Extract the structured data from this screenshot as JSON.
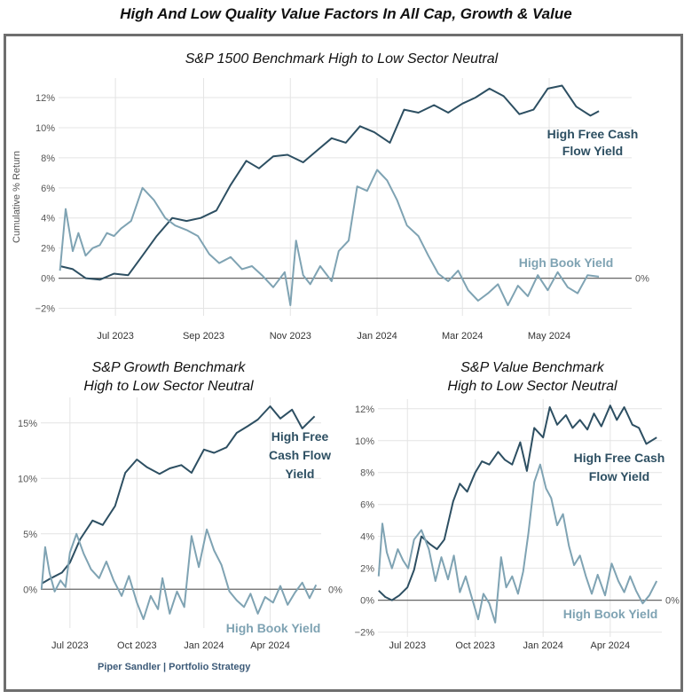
{
  "title": "High And Low Quality Value Factors In All Cap, Growth & Value",
  "footer": "Piper Sandler  |  Portfolio Strategy",
  "colors": {
    "fcf": "#2d4f62",
    "book": "#7fa3b3",
    "zero_line": "#666666",
    "grid": "#e4e4e4"
  },
  "chart_data": [
    {
      "type": "line",
      "title": "S&P 1500 Benchmark High to Low Sector Neutral",
      "ylabel": "Cumulative % Return",
      "ylim": [
        -2.5,
        13.3
      ],
      "yticks": [
        -2,
        0,
        2,
        4,
        6,
        8,
        10,
        12
      ],
      "ytick_labels": [
        "−2%",
        "0%",
        "2%",
        "4%",
        "6%",
        "8%",
        "10%",
        "12%"
      ],
      "xlim": [
        "2023-05-22",
        "2024-06-28"
      ],
      "xticks": [
        "2023-07-01",
        "2023-09-01",
        "2023-11-01",
        "2024-01-01",
        "2024-03-01",
        "2024-05-01"
      ],
      "xtick_labels": [
        "Jul 2023",
        "Sep 2023",
        "Nov 2023",
        "Jan 2024",
        "Mar 2024",
        "May 2024"
      ],
      "zero_label": "0%",
      "series": [
        {
          "name": "High Free Cash Flow Yield",
          "x": [
            "2023-05-23",
            "2023-06-01",
            "2023-06-10",
            "2023-06-20",
            "2023-06-30",
            "2023-07-10",
            "2023-07-20",
            "2023-07-30",
            "2023-08-10",
            "2023-08-20",
            "2023-08-30",
            "2023-09-10",
            "2023-09-20",
            "2023-10-01",
            "2023-10-10",
            "2023-10-20",
            "2023-10-30",
            "2023-11-10",
            "2023-11-20",
            "2023-11-30",
            "2023-12-10",
            "2023-12-20",
            "2023-12-30",
            "2024-01-10",
            "2024-01-20",
            "2024-01-30",
            "2024-02-10",
            "2024-02-20",
            "2024-03-01",
            "2024-03-10",
            "2024-03-20",
            "2024-03-30",
            "2024-04-10",
            "2024-04-20",
            "2024-04-30",
            "2024-05-10",
            "2024-05-20",
            "2024-05-30",
            "2024-06-05"
          ],
          "values": [
            0.8,
            0.6,
            0.0,
            -0.1,
            0.3,
            0.2,
            1.5,
            2.8,
            4.0,
            3.8,
            4.0,
            4.5,
            6.2,
            7.8,
            7.3,
            8.1,
            8.2,
            7.7,
            8.5,
            9.3,
            9.0,
            10.1,
            9.7,
            9.0,
            11.2,
            11.0,
            11.5,
            11.0,
            11.6,
            12.0,
            12.6,
            12.1,
            10.9,
            11.2,
            12.6,
            12.8,
            11.4,
            10.8,
            11.1
          ]
        },
        {
          "name": "High Book Yield",
          "x": [
            "2023-05-23",
            "2023-05-27",
            "2023-06-01",
            "2023-06-05",
            "2023-06-10",
            "2023-06-15",
            "2023-06-20",
            "2023-06-25",
            "2023-06-30",
            "2023-07-05",
            "2023-07-12",
            "2023-07-20",
            "2023-07-28",
            "2023-08-05",
            "2023-08-12",
            "2023-08-20",
            "2023-08-28",
            "2023-09-05",
            "2023-09-12",
            "2023-09-20",
            "2023-09-28",
            "2023-10-05",
            "2023-10-12",
            "2023-10-20",
            "2023-10-28",
            "2023-11-01",
            "2023-11-05",
            "2023-11-10",
            "2023-11-15",
            "2023-11-22",
            "2023-11-30",
            "2023-12-05",
            "2023-12-12",
            "2023-12-18",
            "2023-12-25",
            "2024-01-01",
            "2024-01-08",
            "2024-01-15",
            "2024-01-22",
            "2024-01-30",
            "2024-02-06",
            "2024-02-13",
            "2024-02-20",
            "2024-02-27",
            "2024-03-05",
            "2024-03-12",
            "2024-03-19",
            "2024-03-26",
            "2024-04-02",
            "2024-04-09",
            "2024-04-16",
            "2024-04-23",
            "2024-04-30",
            "2024-05-07",
            "2024-05-14",
            "2024-05-21",
            "2024-05-28",
            "2024-06-05"
          ],
          "values": [
            0.5,
            4.6,
            1.8,
            3.0,
            1.5,
            2.0,
            2.2,
            3.0,
            2.8,
            3.3,
            3.8,
            6.0,
            5.2,
            4.0,
            3.5,
            3.2,
            2.8,
            1.6,
            1.0,
            1.4,
            0.6,
            0.8,
            0.2,
            -0.6,
            0.4,
            -1.8,
            2.5,
            0.2,
            -0.4,
            0.8,
            -0.2,
            1.8,
            2.5,
            6.1,
            5.8,
            7.2,
            6.5,
            5.2,
            3.5,
            2.8,
            1.5,
            0.3,
            -0.2,
            0.5,
            -0.8,
            -1.5,
            -1.0,
            -0.4,
            -1.8,
            -0.5,
            -1.2,
            0.2,
            -0.8,
            0.4,
            -0.6,
            -1.0,
            0.2,
            0.1
          ]
        }
      ]
    },
    {
      "type": "line",
      "title": "S&P Growth Benchmark High to Low Sector Neutral",
      "ylim": [
        -3.5,
        17.3
      ],
      "yticks": [
        0,
        5,
        10,
        15
      ],
      "ytick_labels": [
        "0%",
        "5%",
        "10%",
        "15%"
      ],
      "xlim": [
        "2023-05-22",
        "2024-06-10"
      ],
      "xticks": [
        "2023-07-01",
        "2023-10-01",
        "2024-01-01",
        "2024-04-01"
      ],
      "xtick_labels": [
        "Jul 2023",
        "Oct 2023",
        "Jan 2024",
        "Apr 2024"
      ],
      "zero_label": "0%",
      "series": [
        {
          "name": "High Free Cash Flow Yield",
          "x": [
            "2023-05-23",
            "2023-06-05",
            "2023-06-20",
            "2023-07-01",
            "2023-07-15",
            "2023-08-01",
            "2023-08-15",
            "2023-09-01",
            "2023-09-15",
            "2023-10-01",
            "2023-10-15",
            "2023-11-01",
            "2023-11-15",
            "2023-12-01",
            "2023-12-15",
            "2024-01-01",
            "2024-01-15",
            "2024-02-01",
            "2024-02-15",
            "2024-03-01",
            "2024-03-15",
            "2024-04-01",
            "2024-04-15",
            "2024-05-01",
            "2024-05-15",
            "2024-06-01"
          ],
          "values": [
            0.5,
            1.0,
            1.5,
            2.4,
            4.5,
            6.2,
            5.8,
            7.5,
            10.5,
            11.7,
            11.0,
            10.4,
            10.9,
            11.2,
            10.5,
            12.6,
            12.3,
            12.8,
            14.1,
            14.7,
            15.3,
            16.5,
            15.4,
            16.2,
            14.5,
            15.6
          ]
        },
        {
          "name": "High Book Yield",
          "x": [
            "2023-05-23",
            "2023-05-28",
            "2023-06-03",
            "2023-06-10",
            "2023-06-18",
            "2023-06-25",
            "2023-07-01",
            "2023-07-10",
            "2023-07-20",
            "2023-07-30",
            "2023-08-10",
            "2023-08-20",
            "2023-08-30",
            "2023-09-10",
            "2023-09-20",
            "2023-10-01",
            "2023-10-10",
            "2023-10-20",
            "2023-10-30",
            "2023-11-05",
            "2023-11-15",
            "2023-11-25",
            "2023-12-05",
            "2023-12-15",
            "2023-12-25",
            "2024-01-05",
            "2024-01-15",
            "2024-01-25",
            "2024-02-05",
            "2024-02-15",
            "2024-02-25",
            "2024-03-05",
            "2024-03-15",
            "2024-03-25",
            "2024-04-05",
            "2024-04-15",
            "2024-04-25",
            "2024-05-05",
            "2024-05-15",
            "2024-05-25",
            "2024-06-03"
          ],
          "values": [
            0.0,
            3.8,
            1.5,
            -0.2,
            0.8,
            0.2,
            3.3,
            5.0,
            3.2,
            1.8,
            1.0,
            2.5,
            0.8,
            -0.6,
            1.2,
            -1.2,
            -2.7,
            -0.6,
            -1.8,
            1.0,
            -2.2,
            -0.2,
            -1.6,
            4.8,
            2.0,
            5.4,
            3.5,
            2.2,
            -0.2,
            -1.0,
            -1.6,
            -0.4,
            -2.2,
            -0.7,
            -1.2,
            0.3,
            -1.4,
            -0.3,
            0.6,
            -0.8,
            0.4
          ]
        }
      ]
    },
    {
      "type": "line",
      "title": "S&P Value Benchmark High to Low Sector Neutral",
      "ylim": [
        -2.3,
        12.6
      ],
      "yticks": [
        -2,
        0,
        2,
        4,
        6,
        8,
        10,
        12
      ],
      "ytick_labels": [
        "−2%",
        "0%",
        "2%",
        "4%",
        "6%",
        "8%",
        "10%",
        "12%"
      ],
      "xlim": [
        "2023-05-22",
        "2024-06-10"
      ],
      "xticks": [
        "2023-07-01",
        "2023-10-01",
        "2024-01-01",
        "2024-04-01"
      ],
      "xtick_labels": [
        "Jul 2023",
        "Oct 2023",
        "Jan 2024",
        "Apr 2024"
      ],
      "zero_label": "0%",
      "series": [
        {
          "name": "High Free Cash Flow Yield",
          "x": [
            "2023-05-23",
            "2023-06-01",
            "2023-06-10",
            "2023-06-20",
            "2023-07-01",
            "2023-07-10",
            "2023-07-20",
            "2023-08-01",
            "2023-08-10",
            "2023-08-20",
            "2023-09-01",
            "2023-09-10",
            "2023-09-20",
            "2023-10-01",
            "2023-10-10",
            "2023-10-20",
            "2023-11-01",
            "2023-11-10",
            "2023-11-20",
            "2023-12-01",
            "2023-12-10",
            "2023-12-20",
            "2024-01-01",
            "2024-01-10",
            "2024-01-20",
            "2024-02-01",
            "2024-02-10",
            "2024-02-20",
            "2024-03-01",
            "2024-03-10",
            "2024-03-20",
            "2024-04-01",
            "2024-04-10",
            "2024-04-20",
            "2024-05-01",
            "2024-05-10",
            "2024-05-20",
            "2024-06-03"
          ],
          "values": [
            0.6,
            0.2,
            0.0,
            0.3,
            0.8,
            1.9,
            4.0,
            3.5,
            3.2,
            3.8,
            6.2,
            7.3,
            6.8,
            8.0,
            8.7,
            8.5,
            9.3,
            8.8,
            8.5,
            9.9,
            8.1,
            10.8,
            10.2,
            12.1,
            11.0,
            11.6,
            10.8,
            11.3,
            10.7,
            11.7,
            10.9,
            12.2,
            11.3,
            12.1,
            11.0,
            10.8,
            9.8,
            10.2
          ]
        },
        {
          "name": "High Book Yield",
          "x": [
            "2023-05-23",
            "2023-05-28",
            "2023-06-03",
            "2023-06-10",
            "2023-06-18",
            "2023-06-25",
            "2023-07-02",
            "2023-07-10",
            "2023-07-20",
            "2023-07-30",
            "2023-08-08",
            "2023-08-16",
            "2023-08-25",
            "2023-09-02",
            "2023-09-10",
            "2023-09-18",
            "2023-09-26",
            "2023-10-05",
            "2023-10-12",
            "2023-10-20",
            "2023-10-28",
            "2023-11-05",
            "2023-11-12",
            "2023-11-20",
            "2023-11-28",
            "2023-12-05",
            "2023-12-12",
            "2023-12-20",
            "2023-12-28",
            "2024-01-05",
            "2024-01-12",
            "2024-01-20",
            "2024-01-28",
            "2024-02-05",
            "2024-02-12",
            "2024-02-20",
            "2024-02-28",
            "2024-03-07",
            "2024-03-15",
            "2024-03-25",
            "2024-04-03",
            "2024-04-12",
            "2024-04-20",
            "2024-04-28",
            "2024-05-06",
            "2024-05-15",
            "2024-05-24",
            "2024-06-03"
          ],
          "values": [
            1.5,
            4.8,
            3.0,
            2.0,
            3.2,
            2.5,
            2.0,
            3.8,
            4.4,
            3.2,
            1.2,
            2.7,
            1.3,
            2.8,
            0.5,
            1.5,
            0.2,
            -1.2,
            0.4,
            -0.2,
            -1.4,
            2.7,
            0.8,
            1.5,
            0.4,
            1.8,
            4.2,
            7.4,
            8.5,
            7.0,
            6.4,
            4.7,
            5.4,
            3.4,
            2.2,
            2.8,
            1.5,
            0.4,
            1.6,
            0.3,
            2.3,
            1.2,
            0.5,
            1.5,
            0.6,
            -0.2,
            0.3,
            1.2
          ]
        }
      ]
    }
  ],
  "labels": {
    "top_fcf": [
      "High Free Cash",
      "Flow Yield"
    ],
    "top_book": "High Book Yield",
    "growth_fcf": [
      "High Free",
      "Cash Flow",
      "Yield"
    ],
    "growth_book": "High Book Yield",
    "value_fcf": [
      "High Free Cash",
      "Flow Yield"
    ],
    "value_book": "High Book Yield"
  },
  "panel_titles": {
    "top": "S&P 1500 Benchmark High to Low Sector Neutral",
    "growth": [
      "S&P Growth Benchmark",
      "High to Low Sector Neutral"
    ],
    "value": [
      "S&P Value Benchmark",
      "High to Low Sector Neutral"
    ]
  }
}
